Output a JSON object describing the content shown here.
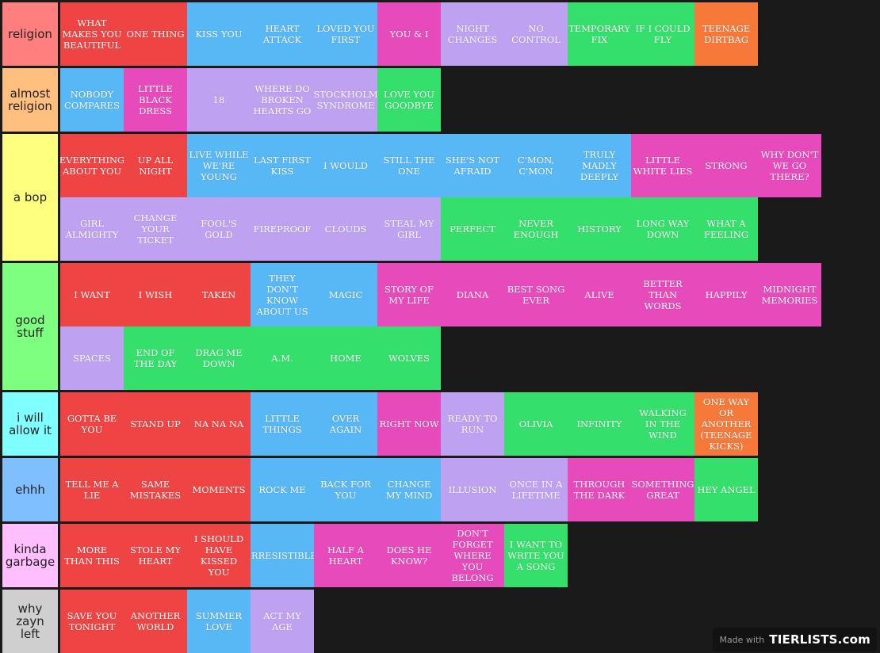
{
  "colors": {
    "red": "#EE4444",
    "blue": "#58B7F5",
    "pink": "#E74ABB",
    "purple": "#BFA1F2",
    "green": "#34E06B",
    "orange": "#F7793A"
  },
  "tiers": [
    {
      "label": "religion",
      "color": "#FF7F7F",
      "items": [
        {
          "text": "WHAT MAKES YOU BEAUTIFUL",
          "color": "red"
        },
        {
          "text": "ONE THING",
          "color": "red"
        },
        {
          "text": "KISS YOU",
          "color": "blue"
        },
        {
          "text": "HEART ATTACK",
          "color": "blue"
        },
        {
          "text": "LOVED YOU FIRST",
          "color": "blue"
        },
        {
          "text": "YOU & I",
          "color": "pink"
        },
        {
          "text": "NIGHT CHANGES",
          "color": "purple"
        },
        {
          "text": "NO CONTROL",
          "color": "purple"
        },
        {
          "text": "TEMPORARY FIX",
          "color": "green"
        },
        {
          "text": "IF I COULD FLY",
          "color": "green"
        },
        {
          "text": "TEENAGE DIRTBAG",
          "color": "orange"
        }
      ]
    },
    {
      "label": "almost religion",
      "color": "#FFBF7F",
      "items": [
        {
          "text": "NOBODY COMPARES",
          "color": "blue"
        },
        {
          "text": "LITTLE BLACK DRESS",
          "color": "pink"
        },
        {
          "text": "18",
          "color": "purple"
        },
        {
          "text": "WHERE DO BROKEN HEARTS GO",
          "color": "purple"
        },
        {
          "text": "STOCKHOLM SYNDROME",
          "color": "purple"
        },
        {
          "text": "LOVE YOU GOODBYE",
          "color": "green"
        }
      ]
    },
    {
      "label": "a bop",
      "color": "#FFFF7F",
      "items": [
        {
          "text": "EVERYTHING ABOUT YOU",
          "color": "red"
        },
        {
          "text": "UP ALL NIGHT",
          "color": "red"
        },
        {
          "text": "LIVE WHILE WE'RE YOUNG",
          "color": "blue"
        },
        {
          "text": "LAST FIRST KISS",
          "color": "blue"
        },
        {
          "text": "I WOULD",
          "color": "blue"
        },
        {
          "text": "STILL THE ONE",
          "color": "blue"
        },
        {
          "text": "SHE'S NOT AFRAID",
          "color": "blue"
        },
        {
          "text": "C'MON, C'MON",
          "color": "blue"
        },
        {
          "text": "TRULY MADLY DEEPLY",
          "color": "blue"
        },
        {
          "text": "LITTLE WHITE LIES",
          "color": "pink"
        },
        {
          "text": "STRONG",
          "color": "pink"
        },
        {
          "text": "WHY DON'T WE GO THERE?",
          "color": "pink"
        },
        {
          "text": "GIRL ALMIGHTY",
          "color": "purple"
        },
        {
          "text": "CHANGE YOUR TICKET",
          "color": "purple"
        },
        {
          "text": "FOOL'S GOLD",
          "color": "purple"
        },
        {
          "text": "FIREPROOF",
          "color": "purple"
        },
        {
          "text": "CLOUDS",
          "color": "purple"
        },
        {
          "text": "STEAL MY GIRL",
          "color": "purple"
        },
        {
          "text": "PERFECT",
          "color": "green"
        },
        {
          "text": "NEVER ENOUGH",
          "color": "green"
        },
        {
          "text": "HISTORY",
          "color": "green"
        },
        {
          "text": "LONG WAY DOWN",
          "color": "green"
        },
        {
          "text": "WHAT A FEELING",
          "color": "green"
        }
      ]
    },
    {
      "label": "good stuff",
      "color": "#7FFF7F",
      "items": [
        {
          "text": "I WANT",
          "color": "red"
        },
        {
          "text": "I WISH",
          "color": "red"
        },
        {
          "text": "TAKEN",
          "color": "red"
        },
        {
          "text": "THEY DON'T KNOW ABOUT US",
          "color": "blue"
        },
        {
          "text": "MAGIC",
          "color": "blue"
        },
        {
          "text": "STORY OF MY LIFE",
          "color": "pink"
        },
        {
          "text": "DIANA",
          "color": "pink"
        },
        {
          "text": "BEST SONG EVER",
          "color": "pink"
        },
        {
          "text": "ALIVE",
          "color": "pink"
        },
        {
          "text": "BETTER THAN WORDS",
          "color": "pink"
        },
        {
          "text": "HAPPILY",
          "color": "pink"
        },
        {
          "text": "MIDNIGHT MEMORIES",
          "color": "pink"
        },
        {
          "text": "SPACES",
          "color": "purple"
        },
        {
          "text": "END OF THE DAY",
          "color": "green"
        },
        {
          "text": "DRAG ME DOWN",
          "color": "green"
        },
        {
          "text": "A.M.",
          "color": "green"
        },
        {
          "text": "HOME",
          "color": "green"
        },
        {
          "text": "WOLVES",
          "color": "green"
        }
      ]
    },
    {
      "label": "i will allow it",
      "color": "#7FFFFF",
      "items": [
        {
          "text": "GOTTA BE YOU",
          "color": "red"
        },
        {
          "text": "STAND UP",
          "color": "red"
        },
        {
          "text": "NA NA NA",
          "color": "red"
        },
        {
          "text": "LITTLE THINGS",
          "color": "blue"
        },
        {
          "text": "OVER AGAIN",
          "color": "blue"
        },
        {
          "text": "RIGHT NOW",
          "color": "pink"
        },
        {
          "text": "READY TO RUN",
          "color": "purple"
        },
        {
          "text": "OLIVIA",
          "color": "green"
        },
        {
          "text": "INFINITY",
          "color": "green"
        },
        {
          "text": "WALKING IN THE WIND",
          "color": "green"
        },
        {
          "text": "ONE WAY OR ANOTHER (TEENAGE KICKS)",
          "color": "orange"
        }
      ]
    },
    {
      "label": "ehhh",
      "color": "#7FBFFF",
      "items": [
        {
          "text": "TELL ME A LIE",
          "color": "red"
        },
        {
          "text": "SAME MISTAKES",
          "color": "red"
        },
        {
          "text": "MOMENTS",
          "color": "red"
        },
        {
          "text": "ROCK ME",
          "color": "blue"
        },
        {
          "text": "BACK FOR YOU",
          "color": "blue"
        },
        {
          "text": "CHANGE MY MIND",
          "color": "blue"
        },
        {
          "text": "ILLUSION",
          "color": "purple"
        },
        {
          "text": "ONCE IN A LIFETIME",
          "color": "purple"
        },
        {
          "text": "THROUGH THE DARK",
          "color": "pink"
        },
        {
          "text": "SOMETHING GREAT",
          "color": "pink"
        },
        {
          "text": "HEY ANGEL",
          "color": "green"
        }
      ]
    },
    {
      "label": "kinda garbage",
      "color": "#FFBFFF",
      "items": [
        {
          "text": "MORE THAN THIS",
          "color": "red"
        },
        {
          "text": "STOLE MY HEART",
          "color": "red"
        },
        {
          "text": "I SHOULD HAVE KISSED YOU",
          "color": "red"
        },
        {
          "text": "IRRESISTIBLE",
          "color": "blue"
        },
        {
          "text": "HALF A HEART",
          "color": "pink"
        },
        {
          "text": "DOES HE KNOW?",
          "color": "pink"
        },
        {
          "text": "DON'T FORGET WHERE YOU BELONG",
          "color": "pink"
        },
        {
          "text": "I WANT TO WRITE YOU A SONG",
          "color": "green"
        }
      ]
    },
    {
      "label": "why zayn left",
      "color": "#CFCFCF",
      "items": [
        {
          "text": "SAVE YOU TONIGHT",
          "color": "red"
        },
        {
          "text": "ANOTHER WORLD",
          "color": "red"
        },
        {
          "text": "SUMMER LOVE",
          "color": "blue"
        },
        {
          "text": "ACT MY AGE",
          "color": "purple"
        }
      ]
    }
  ],
  "watermark": {
    "made_with": "Made with",
    "logo": "TIERLISTS.com"
  }
}
